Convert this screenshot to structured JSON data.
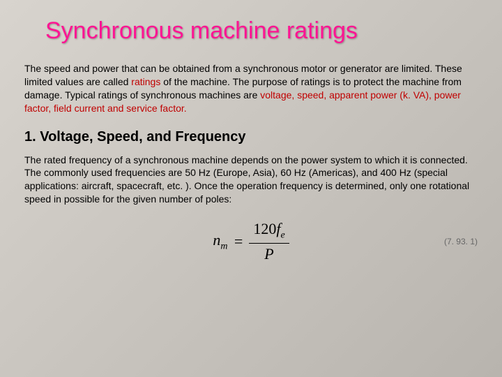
{
  "slide": {
    "title": "Synchronous machine ratings",
    "paragraph1_part1": "The speed and power that can be obtained from a synchronous motor or generator are limited. These limited values are called ",
    "paragraph1_ratings": "ratings",
    "paragraph1_part2": " of the machine. The purpose of ratings is to protect the machine from damage. Typical ratings of synchronous machines are ",
    "paragraph1_list": "voltage, speed, apparent power (k. VA), power factor, field current and service factor",
    "paragraph1_dot": ".",
    "section_heading": "1. Voltage, Speed, and Frequency",
    "paragraph2": "The rated frequency of a synchronous machine depends on the power system to which it is connected. The commonly used frequencies are 50 Hz (Europe, Asia), 60 Hz (Americas), and 400 Hz (special applications: aircraft, spacecraft, etc. ). Once the operation frequency is determined, only one rotational speed in possible for the given number of poles:",
    "formula": {
      "lhs_base": "n",
      "lhs_sub": "m",
      "equals": "=",
      "num_const": "120",
      "num_var": "f",
      "num_sub": "e",
      "den": "P"
    },
    "equation_number": "(7. 93. 1)"
  },
  "styling": {
    "title_color": "#ff1493",
    "title_fontsize": 34,
    "body_fontsize": 14,
    "heading_fontsize": 20,
    "emphasis_color": "#c00000",
    "background_gradient_start": "#d8d4ce",
    "background_gradient_end": "#b8b4ae",
    "eq_number_color": "#666666",
    "formula_fontsize": 22
  }
}
